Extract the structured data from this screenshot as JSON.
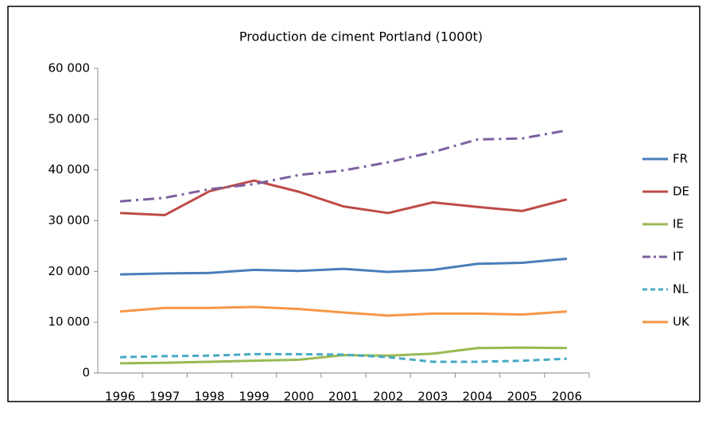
{
  "chart_data": {
    "type": "line",
    "title": "Production de ciment Portland (1000t)",
    "categories": [
      "1996",
      "1997",
      "1998",
      "1999",
      "2000",
      "2001",
      "2002",
      "2003",
      "2004",
      "2005",
      "2006"
    ],
    "series": [
      {
        "name": "FR",
        "color": "#4a7ebb",
        "style": "solid",
        "values": [
          19400,
          19600,
          19700,
          20300,
          20100,
          20500,
          19900,
          20300,
          21500,
          21700,
          22500
        ]
      },
      {
        "name": "DE",
        "color": "#be4b48",
        "style": "solid",
        "values": [
          31500,
          31100,
          35800,
          37900,
          35700,
          32800,
          31500,
          33600,
          32700,
          31900,
          34200
        ]
      },
      {
        "name": "IE",
        "color": "#98b954",
        "style": "solid",
        "values": [
          1900,
          2000,
          2200,
          2400,
          2600,
          3500,
          3400,
          3800,
          4900,
          5000,
          4900
        ]
      },
      {
        "name": "IT",
        "color": "#7d60a0",
        "style": "dashdot",
        "values": [
          33800,
          34500,
          36200,
          37200,
          39000,
          39900,
          41500,
          43500,
          46000,
          46200,
          47800
        ]
      },
      {
        "name": "NL",
        "color": "#46aac5",
        "style": "dashed",
        "values": [
          3100,
          3300,
          3400,
          3700,
          3700,
          3600,
          3100,
          2200,
          2200,
          2400,
          2800
        ]
      },
      {
        "name": "UK",
        "color": "#f79646",
        "style": "solid",
        "values": [
          12100,
          12800,
          12800,
          13000,
          12600,
          11900,
          11300,
          11700,
          11700,
          11500,
          12100
        ]
      }
    ],
    "ylim": [
      0,
      60000
    ],
    "yticks": [
      0,
      {
        "value": 10000,
        "label": "10 000"
      },
      {
        "value": 20000,
        "label": "20 000"
      },
      {
        "value": 30000,
        "label": "30 000"
      },
      {
        "value": 40000,
        "label": "40 000"
      },
      {
        "value": 50000,
        "label": "50 000"
      },
      {
        "value": 60000,
        "label": "60 000"
      }
    ],
    "legend": "right"
  }
}
